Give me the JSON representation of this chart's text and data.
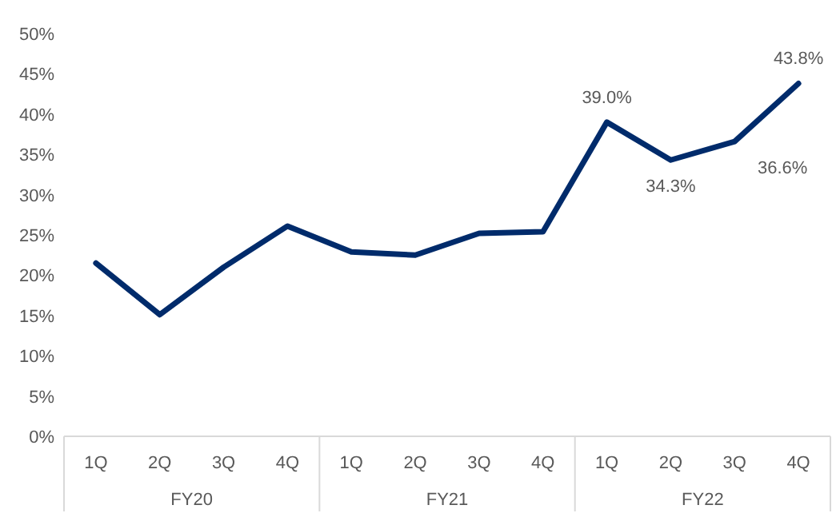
{
  "chart_data": {
    "type": "line",
    "categories": [
      "1Q",
      "2Q",
      "3Q",
      "4Q",
      "1Q",
      "2Q",
      "3Q",
      "4Q",
      "1Q",
      "2Q",
      "3Q",
      "4Q"
    ],
    "series": [
      {
        "color": "#002b6b",
        "values": [
          21.5,
          15.1,
          21.0,
          26.1,
          22.9,
          22.5,
          25.2,
          25.4,
          39.0,
          34.3,
          36.6,
          43.8
        ],
        "value_labels": [
          null,
          null,
          null,
          null,
          null,
          null,
          null,
          null,
          "39.0%",
          "34.3%",
          "36.6%",
          "43.8%"
        ]
      }
    ],
    "annotations": [
      "FY20",
      "FY21",
      "FY22"
    ],
    "ylim": [
      0,
      50
    ],
    "yticks": [
      {
        "value": 0,
        "label": "0%"
      },
      {
        "value": 5,
        "label": "5%"
      },
      {
        "value": 10,
        "label": "10%"
      },
      {
        "value": 15,
        "label": "15%"
      },
      {
        "value": 20,
        "label": "20%"
      },
      {
        "value": 25,
        "label": "25%"
      },
      {
        "value": 30,
        "label": "30%"
      },
      {
        "value": 35,
        "label": "35%"
      },
      {
        "value": 40,
        "label": "40%"
      },
      {
        "value": 45,
        "label": "45%"
      },
      {
        "value": 50,
        "label": "50%"
      }
    ],
    "grid": false,
    "marker": "none",
    "line_style": "solid"
  }
}
